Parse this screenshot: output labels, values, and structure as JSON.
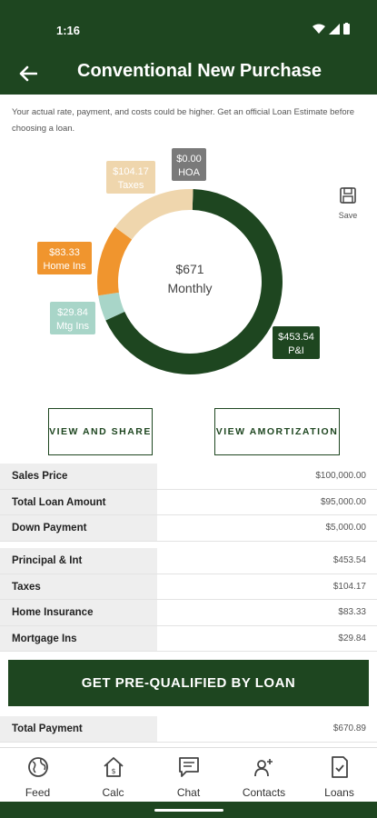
{
  "status_bar": {
    "time": "1:16"
  },
  "header": {
    "title": "Conventional New Purchase"
  },
  "disclaimer": "Your actual rate, payment, and costs could be higher. Get an official Loan Estimate before choosing a loan.",
  "chart_data": {
    "type": "pie",
    "center_label": {
      "amount": "$671",
      "period": "Monthly"
    },
    "slices": [
      {
        "name": "P&I",
        "value": 453.54,
        "label": "$453.54",
        "color": "#1e4620"
      },
      {
        "name": "Mtg Ins",
        "value": 29.84,
        "label": "$29.84",
        "color": "#a8d5c8"
      },
      {
        "name": "Home Ins",
        "value": 83.33,
        "label": "$83.33",
        "color": "#f0952e"
      },
      {
        "name": "Taxes",
        "value": 104.17,
        "label": "$104.17",
        "color": "#efd6ad"
      },
      {
        "name": "HOA",
        "value": 0.0,
        "label": "$0.00",
        "color": "#7a7a7a"
      }
    ]
  },
  "save": {
    "label": "Save",
    "icon": "save-icon"
  },
  "buttons": {
    "view_share": "VIEW AND SHARE",
    "view_amortization": "VIEW AMORTIZATION",
    "prequal": "GET PRE-QUALIFIED BY LOAN"
  },
  "table1": [
    {
      "label": "Sales Price",
      "value": "$100,000.00"
    },
    {
      "label": "Total Loan Amount",
      "value": "$95,000.00"
    },
    {
      "label": "Down Payment",
      "value": "$5,000.00"
    }
  ],
  "table2": [
    {
      "label": "Principal & Int",
      "value": "$453.54"
    },
    {
      "label": "Taxes",
      "value": "$104.17"
    },
    {
      "label": "Home Insurance",
      "value": "$83.33"
    },
    {
      "label": "Mortgage Ins",
      "value": "$29.84"
    }
  ],
  "table3": [
    {
      "label": "Total Payment",
      "value": "$670.89"
    }
  ],
  "nav": [
    {
      "label": "Feed",
      "icon": "globe-icon"
    },
    {
      "label": "Calc",
      "icon": "calc-home-icon"
    },
    {
      "label": "Chat",
      "icon": "chat-icon"
    },
    {
      "label": "Contacts",
      "icon": "contacts-icon"
    },
    {
      "label": "Loans",
      "icon": "loans-icon"
    }
  ]
}
